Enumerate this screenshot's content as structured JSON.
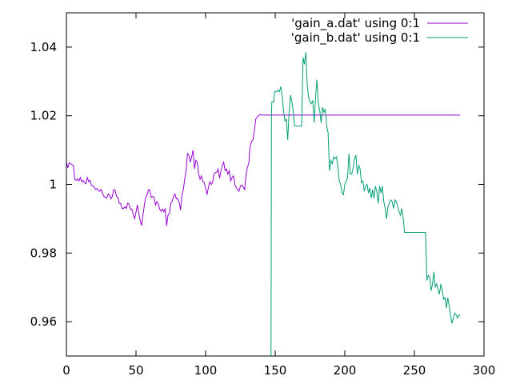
{
  "chart_data": {
    "type": "line",
    "title": "",
    "xlabel": "",
    "ylabel": "",
    "xlim": [
      0,
      300
    ],
    "ylim": [
      0.95,
      1.05
    ],
    "grid": false,
    "legend": "top-right",
    "x_ticks": [
      {
        "value": 0,
        "label": "0"
      },
      {
        "value": 50,
        "label": "50"
      },
      {
        "value": 100,
        "label": "100"
      },
      {
        "value": 150,
        "label": "150"
      },
      {
        "value": 200,
        "label": "200"
      },
      {
        "value": 250,
        "label": "250"
      },
      {
        "value": 300,
        "label": "300"
      }
    ],
    "y_ticks": [
      {
        "value": 0.96,
        "label": "0.96"
      },
      {
        "value": 0.98,
        "label": "0.98"
      },
      {
        "value": 1.0,
        "label": "1"
      },
      {
        "value": 1.02,
        "label": "1.02"
      },
      {
        "value": 1.04,
        "label": "1.04"
      }
    ],
    "series": [
      {
        "name": "'gain_a.dat' using 0:1",
        "color": "#9400d3",
        "points": [
          [
            0,
            1.0065
          ],
          [
            1,
            1.0048
          ],
          [
            2,
            1.0063
          ],
          [
            4,
            1.0058
          ],
          [
            5,
            1.0055
          ],
          [
            6,
            1.0015
          ],
          [
            7,
            1.0012
          ],
          [
            8,
            1.0016
          ],
          [
            9,
            1.001
          ],
          [
            10,
            1.002
          ],
          [
            11,
            1.0008
          ],
          [
            12,
            1.0012
          ],
          [
            13,
            1.0005
          ],
          [
            14,
            1.0002
          ],
          [
            15,
            1.002
          ],
          [
            16,
            1.0008
          ],
          [
            17,
            1.0012
          ],
          [
            18,
            0.9998
          ],
          [
            19,
            0.9995
          ],
          [
            20,
            0.9992
          ],
          [
            21,
            0.9985
          ],
          [
            22,
            0.9988
          ],
          [
            23,
            0.9982
          ],
          [
            24,
            0.998
          ],
          [
            25,
            0.9985
          ],
          [
            26,
            0.9972
          ],
          [
            27,
            0.9965
          ],
          [
            28,
            0.9962
          ],
          [
            29,
            0.996
          ],
          [
            30,
            0.9972
          ],
          [
            31,
            0.997
          ],
          [
            32,
            0.9958
          ],
          [
            33,
            0.9965
          ],
          [
            34,
            0.9985
          ],
          [
            35,
            0.9982
          ],
          [
            36,
            0.9965
          ],
          [
            37,
            0.9962
          ],
          [
            38,
            0.9945
          ],
          [
            39,
            0.9945
          ],
          [
            40,
            0.993
          ],
          [
            41,
            0.993
          ],
          [
            42,
            0.9935
          ],
          [
            43,
            0.993
          ],
          [
            44,
            0.9945
          ],
          [
            45,
            0.9943
          ],
          [
            46,
            0.9928
          ],
          [
            47,
            0.9928
          ],
          [
            48,
            0.9912
          ],
          [
            49,
            0.99
          ],
          [
            50,
            0.992
          ],
          [
            51,
            0.994
          ],
          [
            52,
            0.9915
          ],
          [
            53,
            0.9895
          ],
          [
            54,
            0.988
          ],
          [
            55,
            0.991
          ],
          [
            56,
            0.994
          ],
          [
            57,
            0.9963
          ],
          [
            58,
            0.997
          ],
          [
            59,
            0.9985
          ],
          [
            60,
            0.9982
          ],
          [
            61,
            0.9962
          ],
          [
            62,
            0.9965
          ],
          [
            63,
            0.9962
          ],
          [
            64,
            0.994
          ],
          [
            65,
            0.995
          ],
          [
            66,
            0.9945
          ],
          [
            67,
            0.9928
          ],
          [
            68,
            0.9922
          ],
          [
            69,
            0.9928
          ],
          [
            70,
            0.992
          ],
          [
            71,
            0.993
          ],
          [
            72,
            0.988
          ],
          [
            73,
            0.991
          ],
          [
            74,
            0.9915
          ],
          [
            75,
            0.9945
          ],
          [
            76,
            0.995
          ],
          [
            77,
            0.9965
          ],
          [
            78,
            0.9972
          ],
          [
            79,
            0.9958
          ],
          [
            80,
            0.9958
          ],
          [
            81,
            0.9948
          ],
          [
            82,
            0.9925
          ],
          [
            83,
            0.9968
          ],
          [
            84,
            0.9985
          ],
          [
            85,
            1.0015
          ],
          [
            86,
            1.004
          ],
          [
            87,
            1.009
          ],
          [
            88,
            1.0085
          ],
          [
            89,
            1.0065
          ],
          [
            90,
            1.008
          ],
          [
            91,
            1.01
          ],
          [
            92,
            1.0045
          ],
          [
            93,
            1.007
          ],
          [
            94,
            1.0065
          ],
          [
            95,
            1.003
          ],
          [
            96,
            1.0015
          ],
          [
            97,
            1.0025
          ],
          [
            98,
            1.0008
          ],
          [
            99,
            1.0005
          ],
          [
            100,
            0.999
          ],
          [
            101,
            0.997
          ],
          [
            102,
            0.999
          ],
          [
            103,
            1.0008
          ],
          [
            104,
            1.0
          ],
          [
            105,
            1.0005
          ],
          [
            106,
            1.003
          ],
          [
            107,
            1.0035
          ],
          [
            108,
            1.0035
          ],
          [
            109,
            1.0045
          ],
          [
            110,
            1.0018
          ],
          [
            111,
            1.0038
          ],
          [
            112,
            1.0055
          ],
          [
            113,
            1.0065
          ],
          [
            114,
            1.004
          ],
          [
            115,
            1.0045
          ],
          [
            116,
            1.003
          ],
          [
            117,
            1.004
          ],
          [
            118,
            1.001
          ],
          [
            119,
            1.002
          ],
          [
            120,
            1.0025
          ],
          [
            121,
            1.0
          ],
          [
            122,
            0.999
          ],
          [
            123,
            0.9985
          ],
          [
            124,
            0.998
          ],
          [
            125,
            0.9995
          ],
          [
            126,
            0.9998
          ],
          [
            127,
            0.9992
          ],
          [
            128,
            0.9985
          ],
          [
            129,
            1.0025
          ],
          [
            130,
            1.005
          ],
          [
            131,
            1.006
          ],
          [
            132,
            1.011
          ],
          [
            133,
            1.0125
          ],
          [
            134,
            1.013
          ],
          [
            135,
            1.0155
          ],
          [
            136,
            1.019
          ],
          [
            137,
            1.0195
          ],
          [
            138,
            1.02
          ],
          [
            139,
            1.0203
          ],
          [
            141,
            1.0202
          ],
          [
            283,
            1.0202
          ]
        ]
      },
      {
        "name": "'gain_b.dat' using 0:1",
        "color": "#009e73",
        "points": [
          [
            147,
            0.95
          ],
          [
            147.3,
            1.02
          ],
          [
            147.6,
            1.024
          ],
          [
            149,
            1.024
          ],
          [
            149.5,
            1.027
          ],
          [
            151,
            1.027
          ],
          [
            152,
            1.0275
          ],
          [
            153,
            1.027
          ],
          [
            154,
            1.0285
          ],
          [
            155,
            1.026
          ],
          [
            156,
            1.0215
          ],
          [
            157,
            1.0185
          ],
          [
            158,
            1.019
          ],
          [
            159,
            1.013
          ],
          [
            160,
            1.021
          ],
          [
            161,
            1.026
          ],
          [
            162,
            1.024
          ],
          [
            163,
            1.021
          ],
          [
            164,
            1.017
          ],
          [
            169,
            1.017
          ],
          [
            170,
            1.037
          ],
          [
            171,
            1.035
          ],
          [
            172,
            1.0385
          ],
          [
            173,
            1.029
          ],
          [
            174,
            1.0255
          ],
          [
            175,
            1.024
          ],
          [
            176,
            1.0235
          ],
          [
            177,
            1.0245
          ],
          [
            178,
            1.018
          ],
          [
            179,
            1.0255
          ],
          [
            180,
            1.0305
          ],
          [
            181,
            1.0235
          ],
          [
            182,
            1.0215
          ],
          [
            183,
            1.018
          ],
          [
            184,
            1.0225
          ],
          [
            185,
            1.021
          ],
          [
            186,
            1.022
          ],
          [
            187,
            1.017
          ],
          [
            188,
            1.015
          ],
          [
            189,
            1.004
          ],
          [
            190,
            1.007
          ],
          [
            191,
            1.006
          ],
          [
            192,
            1.008
          ],
          [
            193,
            1.0075
          ],
          [
            194,
            1.008
          ],
          [
            195,
            1.0055
          ],
          [
            196,
            1.001
          ],
          [
            197,
            1.0
          ],
          [
            198,
            0.9975
          ],
          [
            199,
            0.997
          ],
          [
            200,
            1.0
          ],
          [
            201,
            1.001
          ],
          [
            202,
            1.002
          ],
          [
            203,
            1.009
          ],
          [
            204,
            1.003
          ],
          [
            205,
            1.003
          ],
          [
            206,
            1.005
          ],
          [
            207,
            1.0075
          ],
          [
            208,
            1.0085
          ],
          [
            209,
            1.003
          ],
          [
            210,
            1.0055
          ],
          [
            211,
            1.0045
          ],
          [
            212,
            1.0005
          ],
          [
            213,
            1.001
          ],
          [
            214,
            0.998
          ],
          [
            215,
            0.9995
          ],
          [
            216,
            1.0
          ],
          [
            217,
            0.9975
          ],
          [
            218,
            0.999
          ],
          [
            219,
            0.996
          ],
          [
            220,
            0.9985
          ],
          [
            221,
            0.996
          ],
          [
            222,
            0.9995
          ],
          [
            223,
            0.998
          ],
          [
            224,
            0.9945
          ],
          [
            225,
            0.9995
          ],
          [
            226,
            0.9975
          ],
          [
            227,
            0.9995
          ],
          [
            228,
            0.995
          ],
          [
            229,
            0.993
          ],
          [
            230,
            0.99
          ],
          [
            231,
            0.9935
          ],
          [
            232,
            0.9945
          ],
          [
            233,
            0.9955
          ],
          [
            234,
            0.995
          ],
          [
            235,
            0.993
          ],
          [
            236,
            0.9955
          ],
          [
            237,
            0.995
          ],
          [
            238,
            0.9935
          ],
          [
            239,
            0.992
          ],
          [
            240,
            0.991
          ],
          [
            241,
            0.993
          ],
          [
            242,
            0.99
          ],
          [
            243,
            0.986
          ],
          [
            258,
            0.986
          ],
          [
            259,
            0.972
          ],
          [
            260,
            0.9735
          ],
          [
            261,
            0.973
          ],
          [
            262,
            0.969
          ],
          [
            263,
            0.971
          ],
          [
            264,
            0.9745
          ],
          [
            265,
            0.97
          ],
          [
            266,
            0.971
          ],
          [
            267,
            0.9695
          ],
          [
            268,
            0.968
          ],
          [
            269,
            0.971
          ],
          [
            270,
            0.969
          ],
          [
            271,
            0.9665
          ],
          [
            272,
            0.967
          ],
          [
            273,
            0.964
          ],
          [
            274,
            0.967
          ],
          [
            275,
            0.9645
          ],
          [
            276,
            0.962
          ],
          [
            277,
            0.9595
          ],
          [
            278,
            0.961
          ],
          [
            279,
            0.9625
          ],
          [
            280,
            0.962
          ],
          [
            281,
            0.961
          ],
          [
            282,
            0.962
          ],
          [
            283,
            0.9618
          ]
        ]
      }
    ]
  }
}
